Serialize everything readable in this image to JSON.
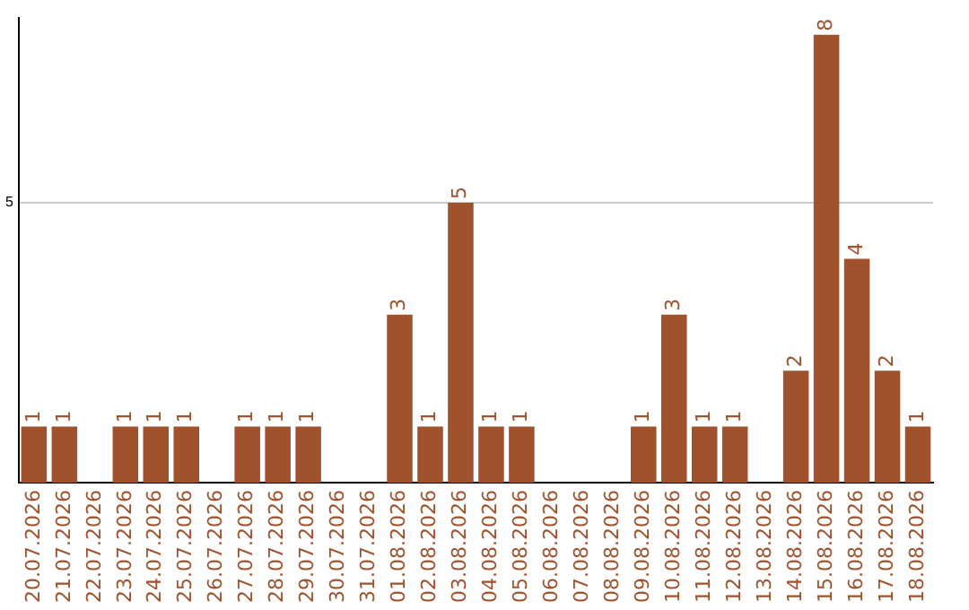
{
  "chart_data": {
    "type": "bar",
    "categories": [
      "20.07.2026",
      "21.07.2026",
      "22.07.2026",
      "23.07.2026",
      "24.07.2026",
      "25.07.2026",
      "26.07.2026",
      "27.07.2026",
      "28.07.2026",
      "29.07.2026",
      "30.07.2026",
      "31.07.2026",
      "01.08.2026",
      "02.08.2026",
      "03.08.2026",
      "04.08.2026",
      "05.08.2026",
      "06.08.2026",
      "07.08.2026",
      "08.08.2026",
      "09.08.2026",
      "10.08.2026",
      "11.08.2026",
      "12.08.2026",
      "13.08.2026",
      "14.08.2026",
      "15.08.2026",
      "16.08.2026",
      "17.08.2026",
      "18.08.2026"
    ],
    "values": [
      1,
      1,
      null,
      1,
      1,
      1,
      null,
      1,
      1,
      1,
      null,
      null,
      3,
      1,
      5,
      1,
      1,
      null,
      null,
      null,
      1,
      3,
      1,
      1,
      null,
      2,
      8,
      4,
      2,
      1
    ],
    "color": "#a0522d",
    "ylim": [
      0,
      8.3
    ],
    "yticks": [
      5
    ],
    "grid": "y",
    "data_labels": true
  }
}
